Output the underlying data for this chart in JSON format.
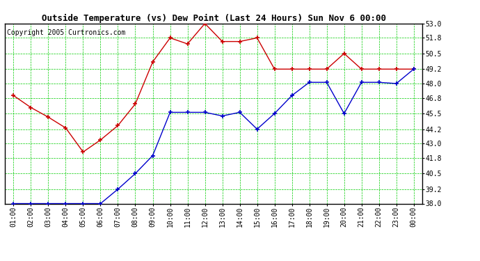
{
  "title": "Outside Temperature (vs) Dew Point (Last 24 Hours) Sun Nov 6 00:00",
  "copyright": "Copyright 2005 Curtronics.com",
  "x_labels": [
    "01:00",
    "02:00",
    "03:00",
    "04:00",
    "05:00",
    "06:00",
    "07:00",
    "08:00",
    "09:00",
    "10:00",
    "11:00",
    "12:00",
    "13:00",
    "14:00",
    "15:00",
    "16:00",
    "17:00",
    "18:00",
    "19:00",
    "20:00",
    "21:00",
    "22:00",
    "23:00",
    "00:00"
  ],
  "temp_red": [
    47.0,
    46.0,
    45.2,
    44.3,
    42.3,
    43.3,
    44.5,
    46.3,
    49.8,
    51.8,
    51.3,
    53.0,
    51.5,
    51.5,
    51.8,
    49.2,
    49.2,
    49.2,
    49.2,
    50.5,
    49.2,
    49.2,
    49.2,
    49.2
  ],
  "dew_blue": [
    38.0,
    38.0,
    38.0,
    38.0,
    38.0,
    38.0,
    39.2,
    40.5,
    42.0,
    45.6,
    45.6,
    45.6,
    45.3,
    45.6,
    44.2,
    45.5,
    47.0,
    48.1,
    48.1,
    45.5,
    48.1,
    48.1,
    48.0,
    49.2
  ],
  "ylim": [
    38.0,
    53.0
  ],
  "yticks": [
    38.0,
    39.2,
    40.5,
    41.8,
    43.0,
    44.2,
    45.5,
    46.8,
    48.0,
    49.2,
    50.5,
    51.8,
    53.0
  ],
  "bg_color": "#ffffff",
  "plot_bg": "#ffffff",
  "grid_color": "#00cc00",
  "red_color": "#cc0000",
  "blue_color": "#0000cc",
  "title_fontsize": 9,
  "copyright_fontsize": 7,
  "tick_fontsize": 7
}
